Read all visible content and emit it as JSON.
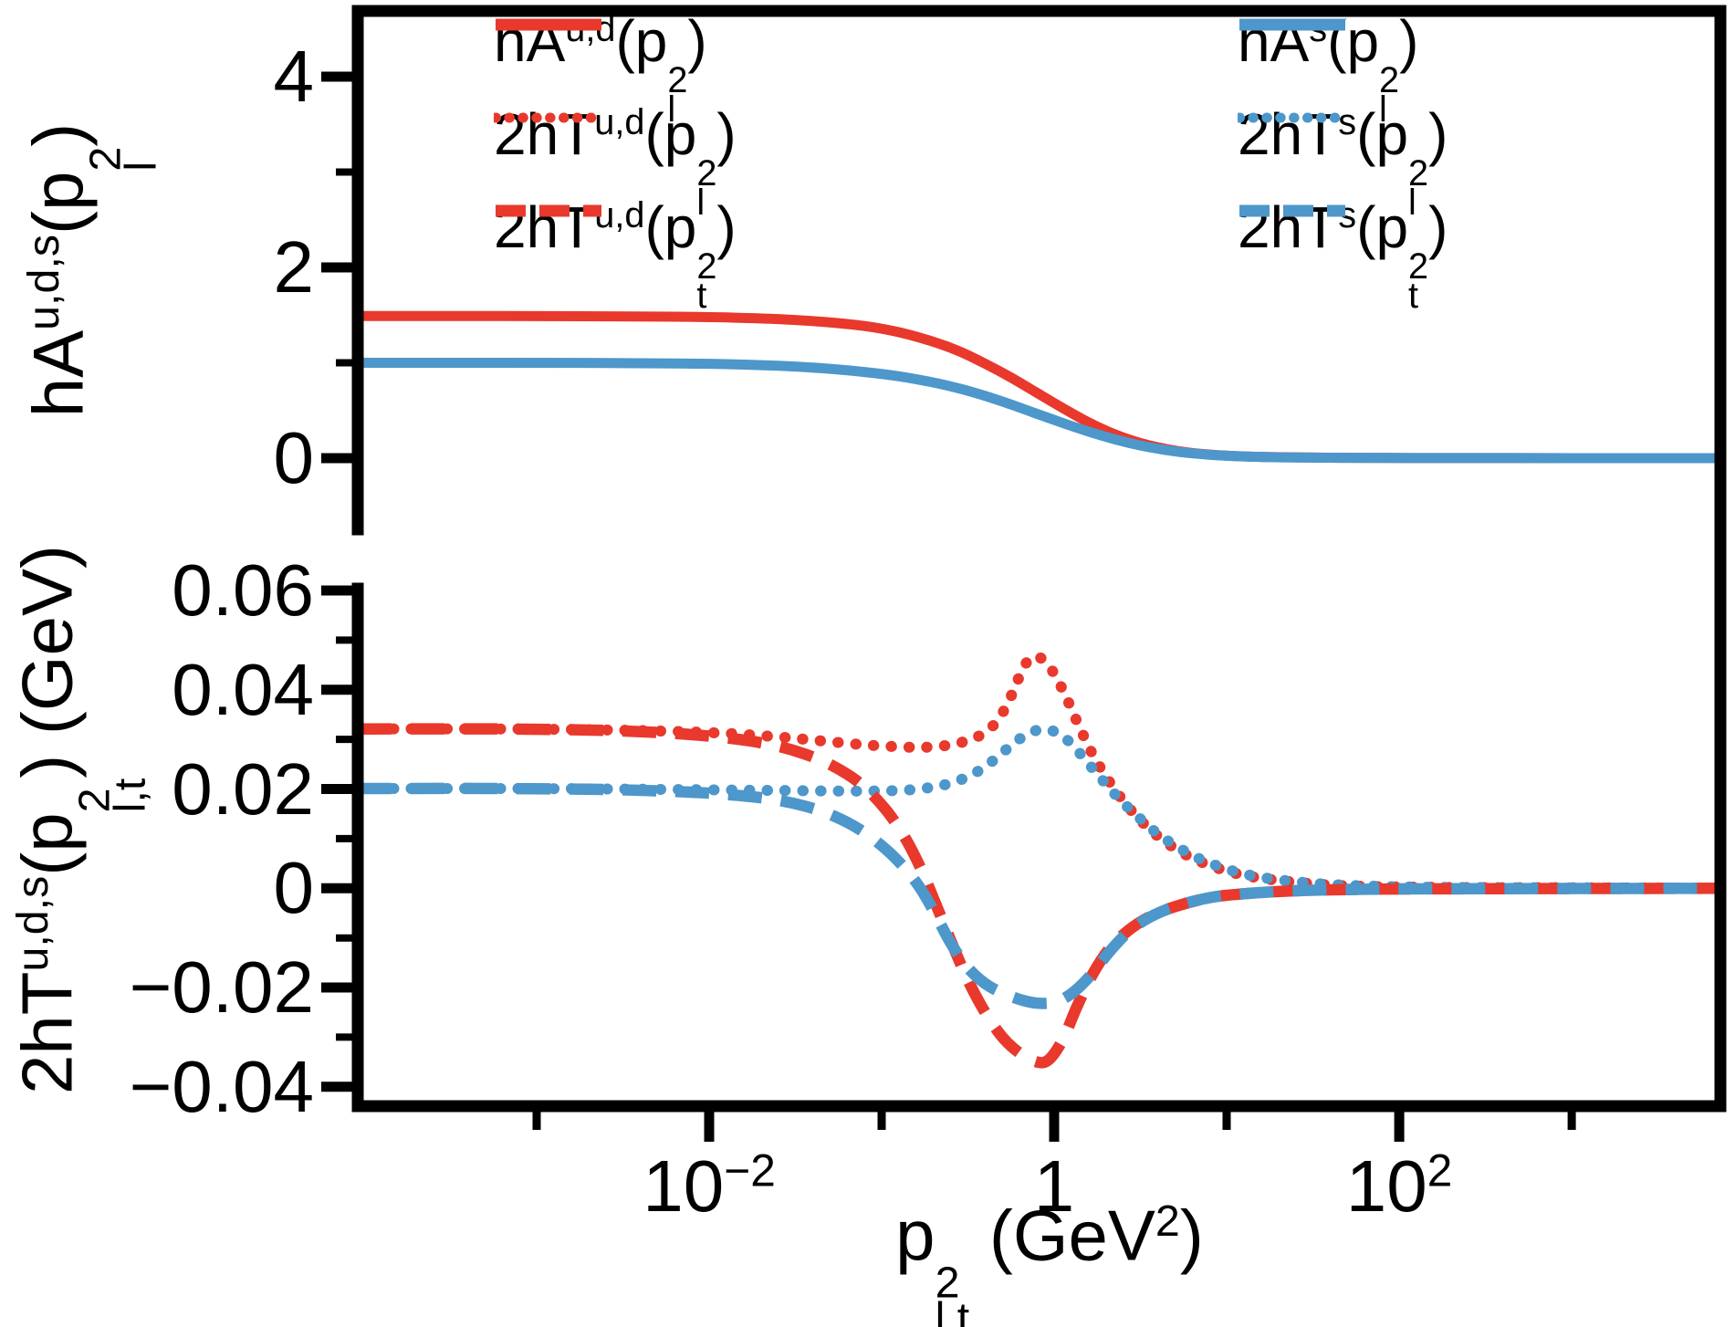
{
  "figure": {
    "background": "#ffffff",
    "axis_color": "#000000"
  },
  "chart_data": {
    "type": "line",
    "x_scale": "log10",
    "grid": false,
    "legend_position": "top-inside-two-columns",
    "colors": {
      "red": "#e8392c",
      "blue": "#4d97cb",
      "axis": "#000000"
    },
    "axes": {
      "x": {
        "label": "p_{l,t}^{2} (GeV^{2})",
        "log_range": [
          -4.037,
          3.862
        ],
        "major_ticks": [
          {
            "log": -2,
            "label": "10^{−2}"
          },
          {
            "log": 0,
            "label": "1"
          },
          {
            "log": 2,
            "label": "10^{2}"
          }
        ],
        "minor_ticks": [
          -3,
          -1,
          1,
          3
        ]
      },
      "top_y": {
        "label": "hA^{u,d,s}(p_{l}^{2})",
        "range": [
          -0.766,
          4.708
        ],
        "major_ticks": [
          {
            "value": 4,
            "label": "4"
          },
          {
            "value": 2,
            "label": "2"
          },
          {
            "value": 0,
            "label": "0"
          }
        ],
        "minor_ticks": [
          1,
          3
        ]
      },
      "bottom_y": {
        "label": "2hT^{u,d,s}(p_{l,t}^{2}) (GeV)",
        "range": [
          -0.0439,
          0.06
        ],
        "major_ticks": [
          {
            "value": 0.06,
            "label": "0.06"
          },
          {
            "value": 0.04,
            "label": "0.04"
          },
          {
            "value": 0.02,
            "label": "0.02"
          },
          {
            "value": 0,
            "label": "0"
          },
          {
            "value": -0.02,
            "label": "−0.02"
          },
          {
            "value": -0.04,
            "label": "−0.04"
          }
        ],
        "minor_ticks": [
          0.05,
          0.03,
          0.01,
          -0.01,
          -0.03
        ]
      }
    },
    "legend": {
      "columns": [
        {
          "entries": [
            {
              "style": "solid",
              "color": "red",
              "label": "hA^{u,d}(p_{l}^{2})"
            },
            {
              "style": "dotted",
              "color": "red",
              "label": "2hT^{u,d}(p_{l}^{2})"
            },
            {
              "style": "dashed",
              "color": "red",
              "label": "2hT^{u,d}(p_{t}^{2})"
            }
          ]
        },
        {
          "entries": [
            {
              "style": "solid",
              "color": "blue",
              "label": "hA^{s}(p_{l}^{2})"
            },
            {
              "style": "dotted",
              "color": "blue",
              "label": "2hT^{s}(p_{l}^{2})"
            },
            {
              "style": "dashed",
              "color": "blue",
              "label": "2hT^{s}(p_{t}^{2})"
            }
          ]
        }
      ]
    },
    "series": [
      {
        "id": "hA-ud",
        "panel": "top",
        "color": "red",
        "style": "solid",
        "label": "hA^{u,d}(p_{l}^{2})",
        "points": [
          [
            -4.037,
            1.49
          ],
          [
            -3.2,
            1.49
          ],
          [
            -2.6,
            1.487
          ],
          [
            -2.2,
            1.483
          ],
          [
            -1.9,
            1.475
          ],
          [
            -1.6,
            1.458
          ],
          [
            -1.35,
            1.43
          ],
          [
            -1.1,
            1.385
          ],
          [
            -0.9,
            1.32
          ],
          [
            -0.7,
            1.22
          ],
          [
            -0.55,
            1.12
          ],
          [
            -0.4,
            0.99
          ],
          [
            -0.25,
            0.845
          ],
          [
            -0.1,
            0.685
          ],
          [
            0.05,
            0.525
          ],
          [
            0.2,
            0.375
          ],
          [
            0.35,
            0.25
          ],
          [
            0.5,
            0.158
          ],
          [
            0.65,
            0.095
          ],
          [
            0.8,
            0.054
          ],
          [
            1.0,
            0.026
          ],
          [
            1.25,
            0.011
          ],
          [
            1.6,
            0.004
          ],
          [
            2.1,
            0.001
          ],
          [
            3.0,
            0
          ],
          [
            3.862,
            0
          ]
        ]
      },
      {
        "id": "hA-s",
        "panel": "top",
        "color": "blue",
        "style": "solid",
        "label": "hA^{s}(p_{l}^{2})",
        "points": [
          [
            -4.037,
            1.0
          ],
          [
            -3.2,
            1.0
          ],
          [
            -2.6,
            0.998
          ],
          [
            -2.2,
            0.993
          ],
          [
            -1.9,
            0.985
          ],
          [
            -1.6,
            0.968
          ],
          [
            -1.35,
            0.943
          ],
          [
            -1.1,
            0.903
          ],
          [
            -0.9,
            0.858
          ],
          [
            -0.7,
            0.793
          ],
          [
            -0.55,
            0.73
          ],
          [
            -0.4,
            0.652
          ],
          [
            -0.25,
            0.562
          ],
          [
            -0.1,
            0.465
          ],
          [
            0.05,
            0.368
          ],
          [
            0.2,
            0.278
          ],
          [
            0.35,
            0.198
          ],
          [
            0.5,
            0.133
          ],
          [
            0.65,
            0.084
          ],
          [
            0.8,
            0.05
          ],
          [
            1.0,
            0.024
          ],
          [
            1.25,
            0.01
          ],
          [
            1.6,
            0.004
          ],
          [
            2.1,
            0.001
          ],
          [
            3.0,
            0
          ],
          [
            3.862,
            0
          ]
        ]
      },
      {
        "id": "2hT-ud-pl",
        "panel": "bottom",
        "color": "red",
        "style": "dotted",
        "label": "2hT^{u,d}(p_{l}^{2})",
        "points": [
          [
            -4.037,
            0.0321
          ],
          [
            -3.2,
            0.0321
          ],
          [
            -2.6,
            0.0319
          ],
          [
            -2.2,
            0.0316
          ],
          [
            -1.9,
            0.0312
          ],
          [
            -1.6,
            0.0305
          ],
          [
            -1.35,
            0.0297
          ],
          [
            -1.1,
            0.0289
          ],
          [
            -0.9,
            0.0285
          ],
          [
            -0.75,
            0.0284
          ],
          [
            -0.6,
            0.0289
          ],
          [
            -0.5,
            0.0298
          ],
          [
            -0.42,
            0.031
          ],
          [
            -0.34,
            0.0333
          ],
          [
            -0.27,
            0.0372
          ],
          [
            -0.21,
            0.042
          ],
          [
            -0.16,
            0.0455
          ],
          [
            -0.12,
            0.0467
          ],
          [
            -0.07,
            0.0462
          ],
          [
            -0.01,
            0.0438
          ],
          [
            0.06,
            0.0392
          ],
          [
            0.14,
            0.033
          ],
          [
            0.22,
            0.0272
          ],
          [
            0.31,
            0.022
          ],
          [
            0.41,
            0.0172
          ],
          [
            0.52,
            0.013
          ],
          [
            0.65,
            0.0092
          ],
          [
            0.8,
            0.0061
          ],
          [
            0.97,
            0.0038
          ],
          [
            1.15,
            0.0023
          ],
          [
            1.4,
            0.0012
          ],
          [
            1.7,
            0.0005
          ],
          [
            2.2,
            0.0002
          ],
          [
            3.0,
            0.0001
          ],
          [
            3.862,
            0
          ]
        ]
      },
      {
        "id": "2hT-s-pl",
        "panel": "bottom",
        "color": "blue",
        "style": "dotted",
        "label": "2hT^{s}(p_{l}^{2})",
        "points": [
          [
            -4.037,
            0.0201
          ],
          [
            -3.2,
            0.0201
          ],
          [
            -2.6,
            0.02
          ],
          [
            -2.2,
            0.0199
          ],
          [
            -1.9,
            0.0198
          ],
          [
            -1.6,
            0.0197
          ],
          [
            -1.3,
            0.0196
          ],
          [
            -1.05,
            0.0196
          ],
          [
            -0.85,
            0.0198
          ],
          [
            -0.7,
            0.0204
          ],
          [
            -0.58,
            0.0214
          ],
          [
            -0.47,
            0.023
          ],
          [
            -0.37,
            0.0253
          ],
          [
            -0.28,
            0.0279
          ],
          [
            -0.2,
            0.0301
          ],
          [
            -0.13,
            0.0315
          ],
          [
            -0.06,
            0.032
          ],
          [
            0.02,
            0.0313
          ],
          [
            0.1,
            0.0291
          ],
          [
            0.18,
            0.0259
          ],
          [
            0.27,
            0.0222
          ],
          [
            0.37,
            0.0183
          ],
          [
            0.48,
            0.0146
          ],
          [
            0.6,
            0.011
          ],
          [
            0.75,
            0.0076
          ],
          [
            0.9,
            0.0051
          ],
          [
            1.1,
            0.0029
          ],
          [
            1.35,
            0.0015
          ],
          [
            1.7,
            0.0006
          ],
          [
            2.2,
            0.0002
          ],
          [
            3.0,
            0.0001
          ],
          [
            3.862,
            0
          ]
        ]
      },
      {
        "id": "2hT-ud-pt",
        "panel": "bottom",
        "color": "red",
        "style": "dashed",
        "label": "2hT^{u,d}(p_{t}^{2})",
        "points": [
          [
            -4.037,
            0.0321
          ],
          [
            -3.2,
            0.0321
          ],
          [
            -2.6,
            0.0318
          ],
          [
            -2.2,
            0.0312
          ],
          [
            -1.9,
            0.0303
          ],
          [
            -1.65,
            0.029
          ],
          [
            -1.45,
            0.0271
          ],
          [
            -1.28,
            0.0246
          ],
          [
            -1.12,
            0.021
          ],
          [
            -0.98,
            0.016
          ],
          [
            -0.87,
            0.0105
          ],
          [
            -0.78,
            0.0045
          ],
          [
            -0.7,
            -0.002
          ],
          [
            -0.6,
            -0.0105
          ],
          [
            -0.5,
            -0.0185
          ],
          [
            -0.4,
            -0.025
          ],
          [
            -0.3,
            -0.03
          ],
          [
            -0.2,
            -0.0332
          ],
          [
            -0.1,
            -0.035
          ],
          [
            -0.03,
            -0.0345
          ],
          [
            0.05,
            -0.0305
          ],
          [
            0.13,
            -0.024
          ],
          [
            0.22,
            -0.0175
          ],
          [
            0.32,
            -0.0122
          ],
          [
            0.43,
            -0.0085
          ],
          [
            0.55,
            -0.0058
          ],
          [
            0.7,
            -0.0037
          ],
          [
            0.9,
            -0.0019
          ],
          [
            1.1,
            -0.0011
          ],
          [
            1.4,
            -0.0005
          ],
          [
            1.8,
            -0.0002
          ],
          [
            2.4,
            -0.0001
          ],
          [
            3.862,
            0
          ]
        ]
      },
      {
        "id": "2hT-s-pt",
        "panel": "bottom",
        "color": "blue",
        "style": "dashed",
        "label": "2hT^{s}(p_{t}^{2})",
        "points": [
          [
            -4.037,
            0.0201
          ],
          [
            -3.2,
            0.0201
          ],
          [
            -2.6,
            0.0199
          ],
          [
            -2.2,
            0.0195
          ],
          [
            -1.9,
            0.0189
          ],
          [
            -1.65,
            0.018
          ],
          [
            -1.45,
            0.0166
          ],
          [
            -1.28,
            0.0146
          ],
          [
            -1.12,
            0.0117
          ],
          [
            -0.98,
            0.008
          ],
          [
            -0.87,
            0.0042
          ],
          [
            -0.78,
            0.0002
          ],
          [
            -0.7,
            -0.0045
          ],
          [
            -0.6,
            -0.011
          ],
          [
            -0.5,
            -0.016
          ],
          [
            -0.4,
            -0.0192
          ],
          [
            -0.3,
            -0.0211
          ],
          [
            -0.18,
            -0.0226
          ],
          [
            -0.08,
            -0.0232
          ],
          [
            0.02,
            -0.0228
          ],
          [
            0.12,
            -0.0207
          ],
          [
            0.22,
            -0.0172
          ],
          [
            0.32,
            -0.0128
          ],
          [
            0.43,
            -0.0088
          ],
          [
            0.55,
            -0.0059
          ],
          [
            0.7,
            -0.0037
          ],
          [
            0.9,
            -0.0019
          ],
          [
            1.1,
            -0.0011
          ],
          [
            1.4,
            -0.0005
          ],
          [
            1.8,
            -0.0002
          ],
          [
            2.4,
            -0.0001
          ],
          [
            3.862,
            0
          ]
        ]
      }
    ]
  }
}
